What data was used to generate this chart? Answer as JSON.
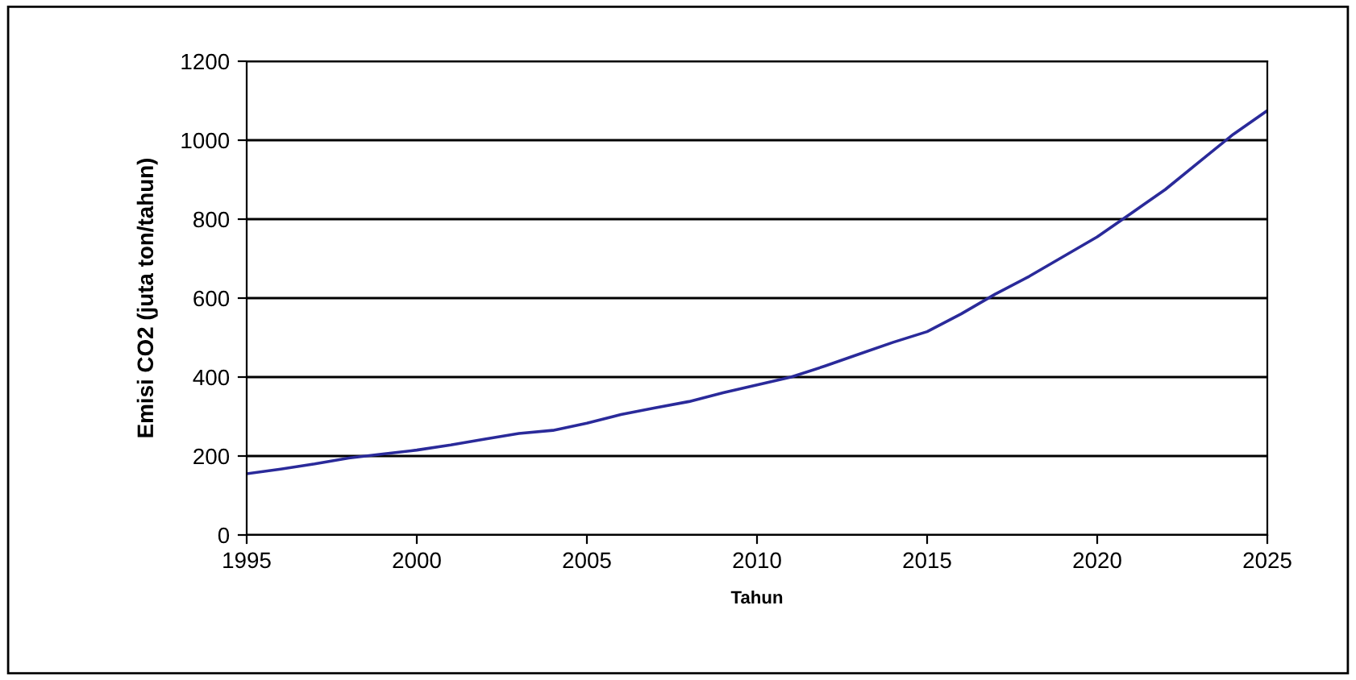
{
  "chart_data": {
    "type": "line",
    "xlabel": "Tahun",
    "ylabel": "Emisi CO2 (juta ton/tahun)",
    "x": [
      1995,
      1996,
      1997,
      1998,
      1999,
      2000,
      2001,
      2002,
      2003,
      2004,
      2005,
      2006,
      2007,
      2008,
      2009,
      2010,
      2011,
      2012,
      2013,
      2014,
      2015,
      2016,
      2017,
      2018,
      2019,
      2020,
      2021,
      2022,
      2023,
      2024,
      2025
    ],
    "series": [
      {
        "color": "#2a2a9a",
        "values": [
          155,
          167,
          180,
          195,
          205,
          215,
          228,
          243,
          257,
          265,
          283,
          305,
          322,
          338,
          360,
          380,
          400,
          428,
          458,
          488,
          515,
          560,
          610,
          655,
          705,
          755,
          815,
          875,
          945,
          1015,
          1075
        ]
      }
    ],
    "xlim": [
      1995,
      2025
    ],
    "xticks": [
      1995,
      2000,
      2005,
      2010,
      2015,
      2020,
      2025
    ],
    "ylim": [
      0,
      1200
    ],
    "yticks": [
      0,
      200,
      400,
      600,
      800,
      1000,
      1200
    ],
    "grid": "y",
    "marker": "none",
    "line_style": "solid"
  }
}
